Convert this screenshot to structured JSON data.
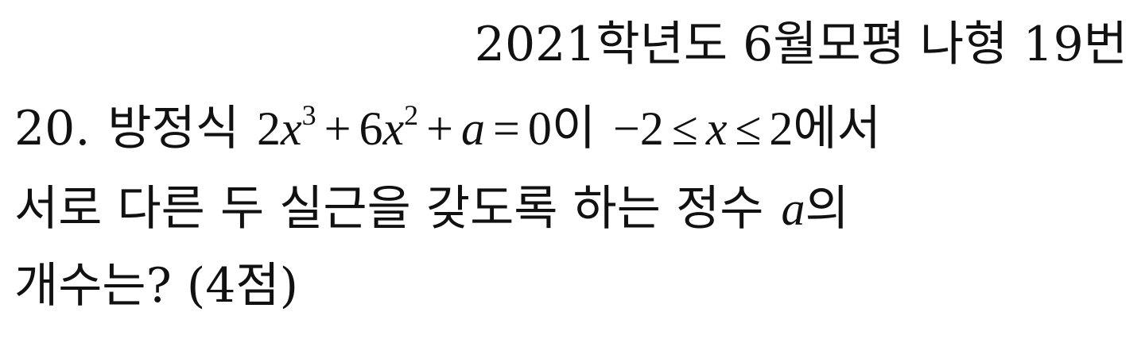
{
  "header": {
    "source": "2021학년도 6월모평 나형 19번"
  },
  "problem": {
    "number": "20.",
    "text_1a": "방정식",
    "equation": {
      "coef1": "2",
      "var1": "x",
      "exp1": "3",
      "op1": "+",
      "coef2": "6",
      "var2": "x",
      "exp2": "2",
      "op2": "+",
      "const": "a",
      "eq": "=",
      "rhs": "0"
    },
    "text_1b": "이",
    "interval": {
      "lower": "−2",
      "le1": "≤",
      "var": "x",
      "le2": "≤",
      "upper": "2"
    },
    "text_1c": "에서",
    "text_2a": "서로 다른 두 실근을 갖도록 하는 정수",
    "var_a": "a",
    "text_2b": "의",
    "text_3": "개수는? (4점)"
  }
}
